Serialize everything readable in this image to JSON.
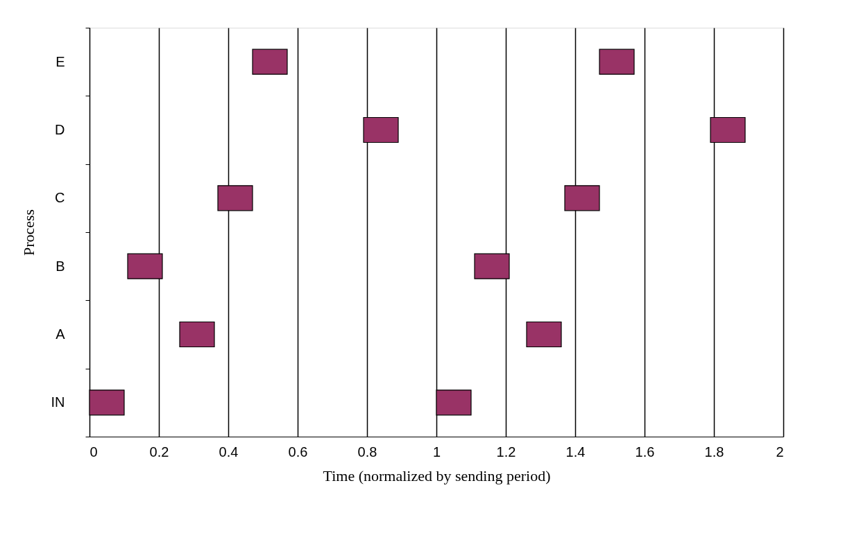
{
  "chart_data": {
    "type": "bar",
    "orientation": "horizontal",
    "xlabel": "Time (normalized by sending period)",
    "ylabel": "Process",
    "categories": [
      "E",
      "D",
      "C",
      "B",
      "A",
      "IN"
    ],
    "series": [
      {
        "color": "#993366",
        "base": [
          0.47,
          0.79,
          0.37,
          0.11,
          0.26,
          0.0
        ],
        "values": [
          0.1,
          0.1,
          0.1,
          0.1,
          0.1,
          0.1
        ]
      },
      {
        "color": "#993366",
        "base": [
          1.47,
          1.79,
          1.37,
          1.11,
          1.26,
          1.0
        ],
        "values": [
          0.1,
          0.1,
          0.1,
          0.1,
          0.1,
          0.1
        ]
      }
    ],
    "xlim": [
      0,
      2
    ],
    "xticks": [
      0,
      0.2,
      0.4,
      0.6,
      0.8,
      1,
      1.2,
      1.4,
      1.6,
      1.8,
      2
    ],
    "grid": "x"
  }
}
